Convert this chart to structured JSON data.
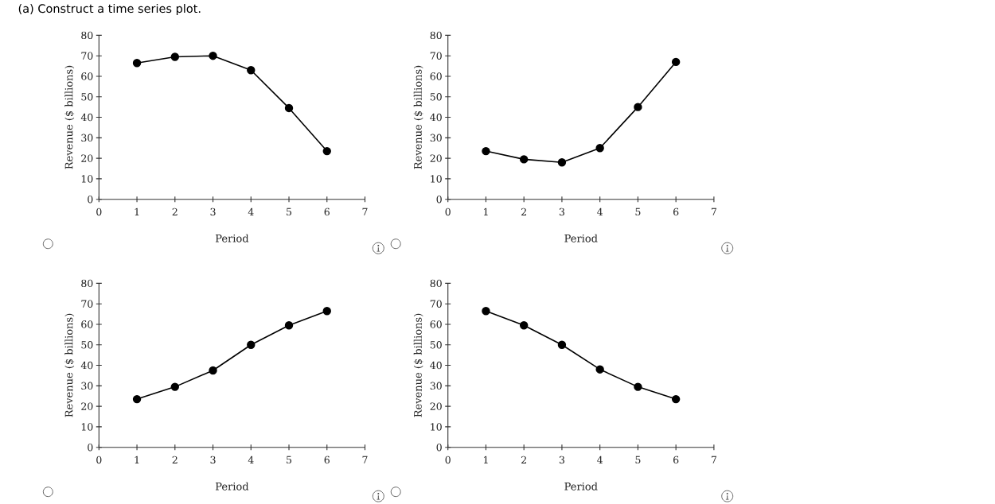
{
  "chart_data": [
    {
      "type": "line",
      "title": "(a) Construct a time series plot.",
      "xlabel": "Period",
      "ylabel": "Revenue ($ billions)",
      "x": [
        1,
        2,
        3,
        4,
        5,
        6
      ],
      "values": [
        66.5,
        69.5,
        70,
        63,
        44.5,
        23.5
      ],
      "color": "#000000",
      "xlim": [
        0,
        7
      ],
      "ylim": [
        0,
        80
      ],
      "xticks": [
        0,
        1,
        2,
        3,
        4,
        5,
        6,
        7
      ],
      "yticks": [
        0,
        10,
        20,
        30,
        40,
        50,
        60,
        70,
        80
      ],
      "marker": "circle",
      "line_style": "solid"
    },
    {
      "type": "line",
      "xlabel": "Period",
      "ylabel": "Revenue ($ billions)",
      "x": [
        1,
        2,
        3,
        4,
        5,
        6
      ],
      "values": [
        23.5,
        19.5,
        18,
        25,
        45,
        67
      ],
      "color": "#000000",
      "xlim": [
        0,
        7
      ],
      "ylim": [
        0,
        80
      ],
      "xticks": [
        0,
        1,
        2,
        3,
        4,
        5,
        6,
        7
      ],
      "yticks": [
        0,
        10,
        20,
        30,
        40,
        50,
        60,
        70,
        80
      ],
      "marker": "circle",
      "line_style": "solid"
    },
    {
      "type": "line",
      "xlabel": "Period",
      "ylabel": "Revenue ($ billions)",
      "x": [
        1,
        2,
        3,
        4,
        5,
        6
      ],
      "values": [
        23.5,
        29.5,
        37.5,
        50,
        59.5,
        66.5
      ],
      "color": "#000000",
      "xlim": [
        0,
        7
      ],
      "ylim": [
        0,
        80
      ],
      "xticks": [
        0,
        1,
        2,
        3,
        4,
        5,
        6,
        7
      ],
      "yticks": [
        0,
        10,
        20,
        30,
        40,
        50,
        60,
        70,
        80
      ],
      "marker": "circle",
      "line_style": "solid"
    },
    {
      "type": "line",
      "xlabel": "Period",
      "ylabel": "Revenue ($ billions)",
      "x": [
        1,
        2,
        3,
        4,
        5,
        6
      ],
      "values": [
        66.5,
        59.5,
        50,
        38,
        29.5,
        23.5
      ],
      "color": "#000000",
      "xlim": [
        0,
        7
      ],
      "ylim": [
        0,
        80
      ],
      "xticks": [
        0,
        1,
        2,
        3,
        4,
        5,
        6,
        7
      ],
      "yticks": [
        0,
        10,
        20,
        30,
        40,
        50,
        60,
        70,
        80
      ],
      "marker": "circle",
      "line_style": "solid"
    }
  ]
}
